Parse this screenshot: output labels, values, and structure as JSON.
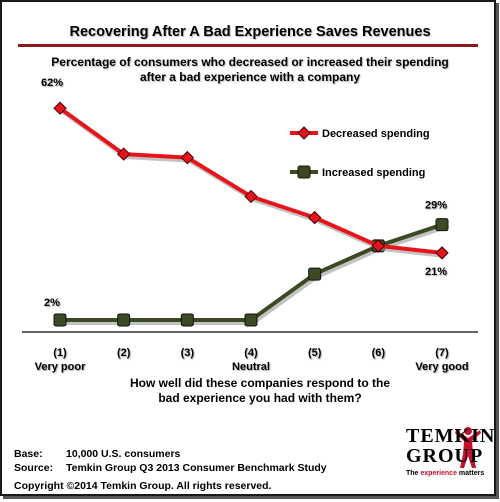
{
  "title": "Recovering After A Bad Experience Saves Revenues",
  "subtitle_line1": "Percentage of consumers who decreased or increased their spending",
  "subtitle_line2": "after a bad experience with a company",
  "x_title_line1": "How well did these companies respond to the",
  "x_title_line2": "bad experience you had with them?",
  "footer": {
    "base_label": "Base:",
    "base_value": "10,000 U.S. consumers",
    "source_label": "Source:",
    "source_value": "Temkin Group Q3 2013 Consumer Benchmark Study",
    "copyright": "Copyright ©2014 Temkin Group. All rights reserved."
  },
  "logo": {
    "line1": "TEMKIN",
    "line2": "GROUP",
    "tag_pre": "The ",
    "tag_highlight": "experience",
    "tag_post": " matters"
  },
  "colors": {
    "decreased": "#e8141b",
    "increased": "#3b4a22",
    "title_rule": "#8b1a1a"
  },
  "chart_data": {
    "type": "line",
    "categories": [
      "(1)",
      "(2)",
      "(3)",
      "(4)",
      "(5)",
      "(6)",
      "(7)"
    ],
    "category_sublabels": [
      "Very poor",
      "",
      "",
      "Neutral",
      "",
      "",
      "Very good"
    ],
    "ylim": [
      0,
      70
    ],
    "grid": false,
    "legend_position": "right",
    "series": [
      {
        "name": "Decreased spending",
        "values": [
          62,
          49,
          48,
          37,
          31,
          23,
          21
        ],
        "labels": {
          "0": "62%",
          "6": "21%"
        }
      },
      {
        "name": "Increased spending",
        "values": [
          2,
          2,
          2,
          2,
          15,
          23,
          29
        ],
        "labels": {
          "0": "2%",
          "6": "29%"
        }
      }
    ]
  }
}
